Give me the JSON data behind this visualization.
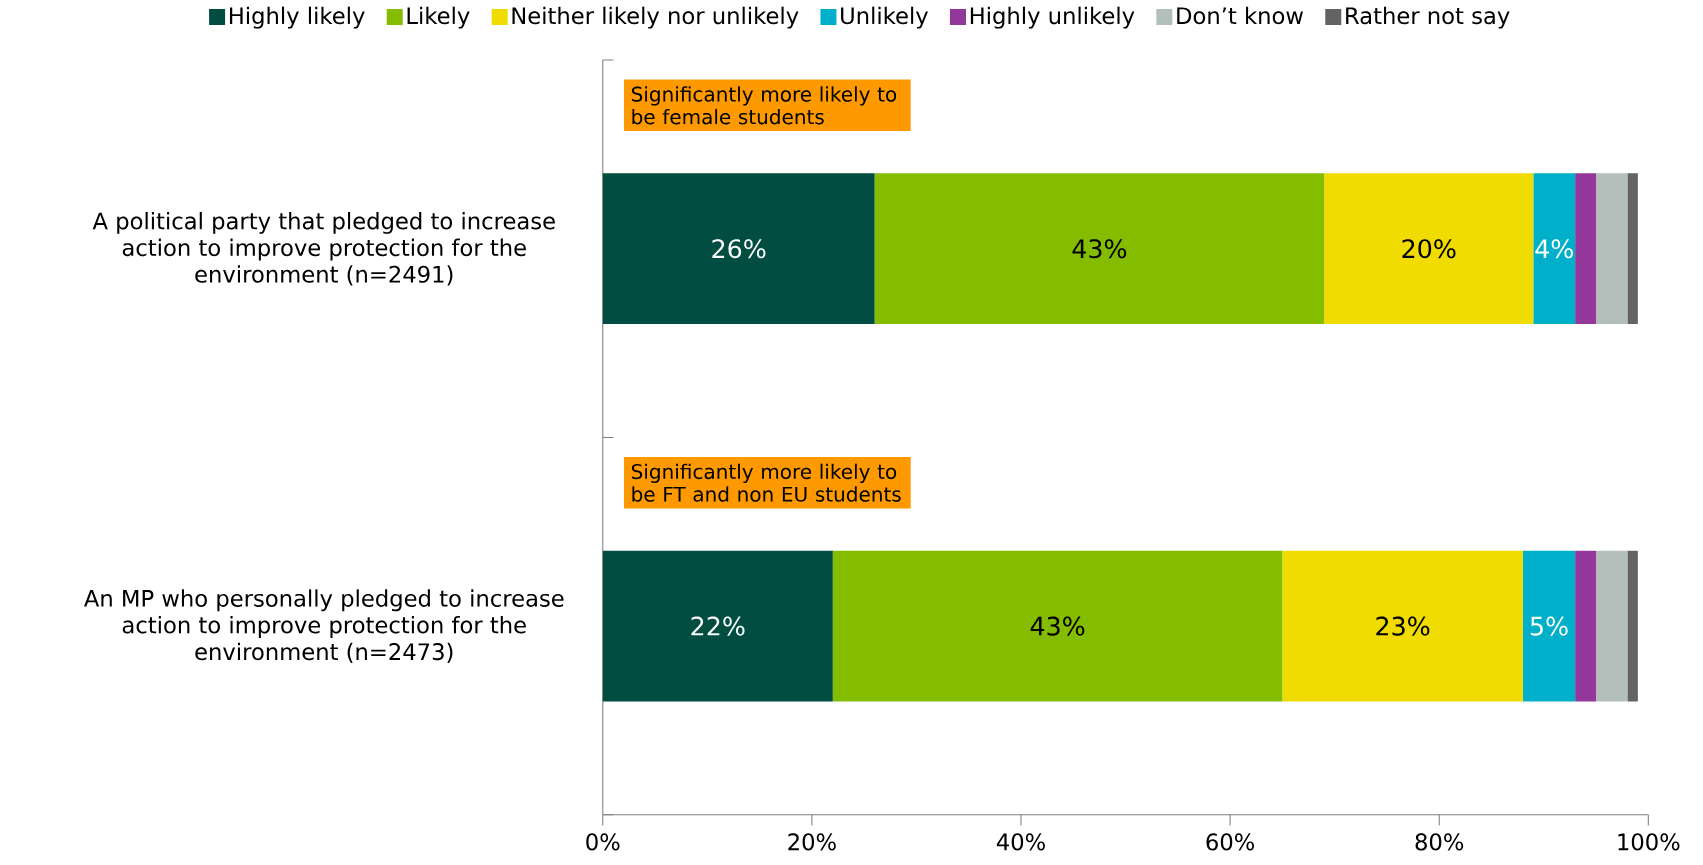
{
  "chart_data": {
    "type": "bar",
    "orientation": "horizontal",
    "stacked": true,
    "legend": "top",
    "categories": [
      "A political party that pledged to increase action to improve protection for the environment (n=2491)",
      "An MP who personally pledged to increase action to improve protection for the environment (n=2473)"
    ],
    "series": [
      {
        "name": "Highly likely",
        "color": "#024d41",
        "values": [
          26,
          22
        ],
        "value_labels": [
          "26%",
          "22%"
        ]
      },
      {
        "name": "Likely",
        "color": "#84bd00",
        "values": [
          43,
          43
        ],
        "value_labels": [
          "43%",
          "43%"
        ]
      },
      {
        "name": "Neither likely nor unlikely",
        "color": "#f0dc00",
        "values": [
          20,
          23
        ],
        "value_labels": [
          "20%",
          "23%"
        ]
      },
      {
        "name": "Unlikely",
        "color": "#00b0ca",
        "values": [
          4,
          5
        ],
        "value_labels": [
          "4%",
          "5%"
        ]
      },
      {
        "name": "Highly unlikely",
        "color": "#93379a",
        "values": [
          2,
          2
        ],
        "value_labels": [
          null,
          null
        ]
      },
      {
        "name": "Don’t know",
        "color": "#b2bfbb",
        "values": [
          3,
          3
        ],
        "value_labels": [
          null,
          null
        ]
      },
      {
        "name": "Rather not say",
        "color": "#636363",
        "values": [
          1,
          1
        ],
        "value_labels": [
          null,
          null
        ]
      }
    ],
    "xlim": [
      0,
      100
    ],
    "xticks": [
      {
        "value": 0,
        "label": "0%"
      },
      {
        "value": 20,
        "label": "20%"
      },
      {
        "value": 40,
        "label": "40%"
      },
      {
        "value": 60,
        "label": "60%"
      },
      {
        "value": 80,
        "label": "80%"
      },
      {
        "value": 100,
        "label": "100%"
      }
    ],
    "annotations": [
      "Significantly more likely to be female students",
      "Significantly more likely to be FT and non EU students"
    ]
  }
}
